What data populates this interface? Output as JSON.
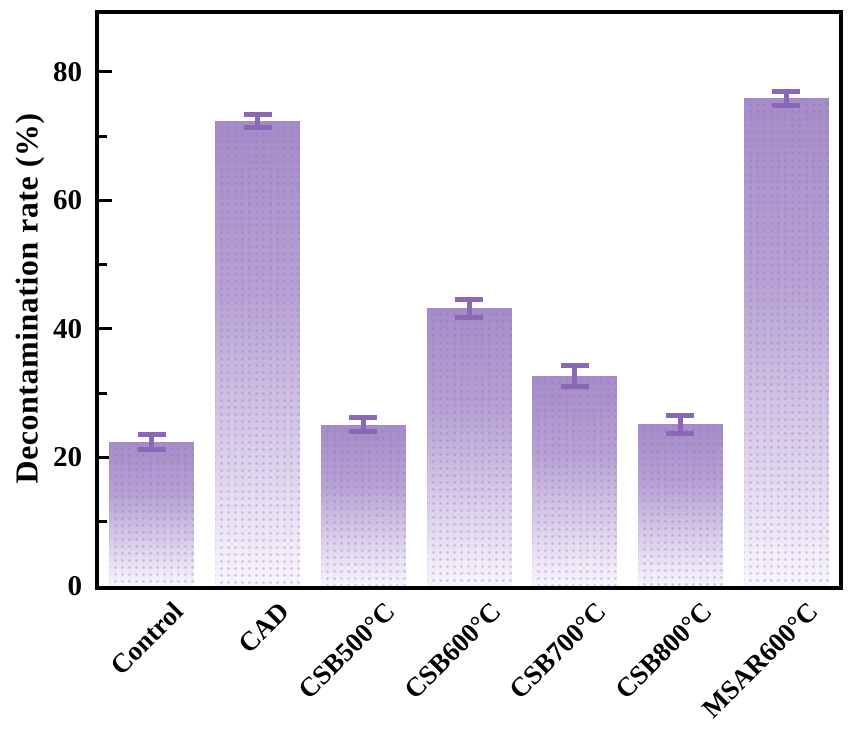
{
  "chart_data": {
    "type": "bar",
    "title": "",
    "categories": [
      "Control",
      "CAD",
      "CSB500°C",
      "CSB600°C",
      "CSB700°C",
      "CSB800°C",
      "MSAR600°C"
    ],
    "values": [
      22.4,
      72.4,
      25.1,
      43.2,
      32.7,
      25.2,
      75.9
    ],
    "errors": [
      1.2,
      1.0,
      1.1,
      1.4,
      1.6,
      1.4,
      1.1
    ],
    "xlabel": "",
    "ylabel": "Decontamination rate (%)",
    "ylim": [
      0,
      89
    ],
    "yticks_major": [
      0,
      20,
      40,
      60,
      80
    ],
    "yticks_minor": [
      10,
      30,
      50,
      70
    ],
    "grid": false,
    "legend": null,
    "colors": {
      "bar_fill_top": "#a58bc8",
      "bar_fill_mid": "#b7a2d4",
      "bar_fill_bottom": "#f8f5fc",
      "bar_dot_pattern": "rgba(139,105,182,0.45)",
      "error_bar": "#8b67b8",
      "axis": "#000000",
      "background": "#ffffff"
    }
  }
}
